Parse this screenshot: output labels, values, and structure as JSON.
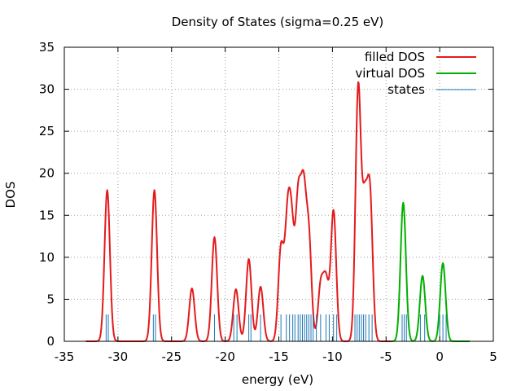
{
  "chart_data": {
    "type": "line",
    "title": "Density of States (sigma=0.25 eV)",
    "xlabel": "energy (eV)",
    "ylabel": "DOS",
    "xlim": [
      -35,
      5
    ],
    "ylim": [
      0,
      35
    ],
    "xticks": [
      -35,
      -30,
      -25,
      -20,
      -15,
      -10,
      -5,
      0,
      5
    ],
    "yticks": [
      0,
      5,
      10,
      15,
      20,
      25,
      30,
      35
    ],
    "grid": true,
    "legend_position": "top-right",
    "sigma": 0.25,
    "series": [
      {
        "name": "filled DOS",
        "color": "#e41a1c",
        "peaks": [
          [
            -31.0,
            18.0
          ],
          [
            -26.6,
            18.0
          ],
          [
            -23.1,
            6.3
          ],
          [
            -21.0,
            12.4
          ],
          [
            -19.0,
            6.2
          ],
          [
            -17.8,
            9.8
          ],
          [
            -16.7,
            6.5
          ],
          [
            -14.8,
            11.0
          ],
          [
            -14.2,
            13.0
          ],
          [
            -13.8,
            12.0
          ],
          [
            -13.2,
            16.0
          ],
          [
            -12.7,
            16.5
          ],
          [
            -12.2,
            12.0
          ],
          [
            -11.1,
            6.5
          ],
          [
            -10.6,
            7.0
          ],
          [
            -9.9,
            15.5
          ],
          [
            -7.6,
            30.0
          ],
          [
            -7.0,
            15.0
          ],
          [
            -6.5,
            17.0
          ]
        ],
        "range": [
          -33.0,
          -4.5
        ]
      },
      {
        "name": "virtual DOS",
        "color": "#00b000",
        "peaks": [
          [
            -3.4,
            16.5
          ],
          [
            -1.6,
            7.8
          ],
          [
            0.3,
            9.3
          ]
        ],
        "range": [
          -4.5,
          2.8
        ]
      },
      {
        "name": "states",
        "color": "#1f77b4",
        "style": "impulses",
        "height": 3.2,
        "energies": [
          -31.1,
          -30.9,
          -26.7,
          -26.5,
          -21.0,
          -19.2,
          -18.9,
          -17.8,
          -17.6,
          -16.7,
          -14.8,
          -14.3,
          -14.0,
          -13.7,
          -13.5,
          -13.2,
          -13.0,
          -12.8,
          -12.6,
          -12.4,
          -12.2,
          -12.0,
          -11.8,
          -11.5,
          -11.1,
          -10.6,
          -10.3,
          -9.9,
          -9.6,
          -7.9,
          -7.7,
          -7.5,
          -7.3,
          -7.1,
          -6.9,
          -6.6,
          -6.3,
          -3.5,
          -3.3,
          -3.1,
          -1.8,
          -1.4,
          0.0,
          0.3,
          0.6
        ]
      }
    ]
  }
}
